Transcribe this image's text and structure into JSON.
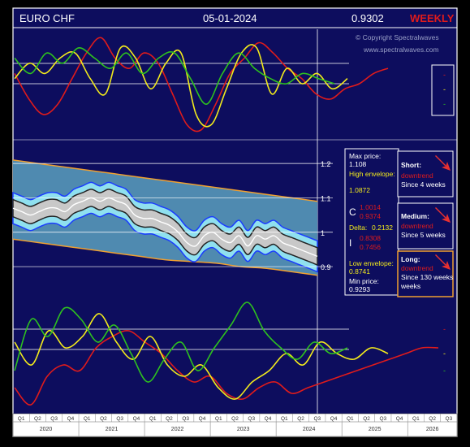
{
  "header": {
    "symbol": "EURO CHF",
    "date": "05-01-2024",
    "price": "0.9302",
    "period": "WEEKLY"
  },
  "copyright": {
    "line1": "© Copyright Spectralwaves",
    "line2": "www.spectralwaves.com"
  },
  "price_panel": {
    "max_price_label": "Max price:",
    "max_price": "1.108",
    "high_env_label": "High envelope:",
    "high_env": "1.0872",
    "c_label": "C",
    "c_val1": "1.0014",
    "c_val2": "0.9374",
    "delta_label": "Delta:",
    "delta": "0.2132",
    "i_label": "I",
    "i_val1": "0.8308",
    "i_val2": "0.7456",
    "low_env_label": "Low envelope:",
    "low_env": "0.8741",
    "min_price_label": "Min price:",
    "min_price": "0.9293"
  },
  "trends": [
    {
      "label": "Short:",
      "trend": "downtrend",
      "since": "Since 4 weeks"
    },
    {
      "label": "Medium:",
      "trend": "downtrend",
      "since": "Since 5 weeks"
    },
    {
      "label": "Long:",
      "trend": "downtrend",
      "since": "Since 130 weeks"
    }
  ],
  "legend_markers": [
    "-",
    "-",
    "-"
  ],
  "colors": {
    "background": "#0d0d5e",
    "frame": "#ffffff",
    "red": "#e01b1b",
    "yellow": "#f2ea1c",
    "green": "#2ec21e",
    "band_outer": "#1a3cff",
    "band_fill": "#8fe0ef",
    "envelope_fill": "#4f8ab0",
    "envelope_line": "#f0a030",
    "gray_band": "#c8c8c8",
    "arrow": "#e83030"
  },
  "chart_data": {
    "type": "line",
    "x_quarters": [
      "Q1",
      "Q2",
      "Q3",
      "Q4",
      "Q1",
      "Q2",
      "Q3",
      "Q4",
      "Q1",
      "Q2",
      "Q3",
      "Q4",
      "Q1",
      "Q2",
      "Q3",
      "Q4",
      "Q1",
      "Q2",
      "Q3",
      "Q4",
      "Q1",
      "Q2",
      "Q3",
      "Q4",
      "Q1",
      "Q2",
      "Q3"
    ],
    "x_years": [
      "2020",
      "2021",
      "2022",
      "2023",
      "2024",
      "2025",
      "2026"
    ],
    "price_axis": {
      "ticks": [
        "1.2",
        "1.1",
        "1",
        "0.9"
      ],
      "tick_values": [
        1.2,
        1.1,
        1.0,
        0.9
      ],
      "ylim": [
        0.86,
        1.25
      ]
    },
    "price_series": {
      "name": "EURCHF",
      "values": [
        1.07,
        1.06,
        1.05,
        1.06,
        1.07,
        1.07,
        1.06,
        1.08,
        1.09,
        1.1,
        1.09,
        1.1,
        1.09,
        1.08,
        1.05,
        1.04,
        1.04,
        1.03,
        1.02,
        1.0,
        0.97,
        0.96,
        0.99,
        1.0,
        0.98,
        0.97,
        0.99,
        0.96,
        0.99,
        0.98,
        0.99,
        0.97,
        0.96,
        0.95,
        0.94,
        0.93
      ]
    },
    "envelope_high": [
      1.21,
      1.2,
      1.19,
      1.18,
      1.17,
      1.16,
      1.15,
      1.14,
      1.13,
      1.12,
      1.11,
      1.1,
      1.09
    ],
    "envelope_low": [
      0.98,
      0.97,
      0.96,
      0.95,
      0.94,
      0.93,
      0.92,
      0.915,
      0.91,
      0.9,
      0.895,
      0.885,
      0.875
    ],
    "top_oscillators": {
      "red": [
        0.2,
        -0.3,
        -0.6,
        -0.4,
        0.1,
        0.6,
        0.9,
        0.5,
        0.3,
        0.6,
        0.4,
        -0.2,
        -0.8,
        -0.9,
        -0.4,
        0.2,
        0.5,
        0.8,
        0.6,
        0.3,
        0.1,
        -0.2,
        -0.3,
        -0.1,
        0.0,
        0.2,
        0.3
      ],
      "yellow": [
        0.1,
        0.4,
        0.2,
        0.5,
        0.6,
        0.1,
        -0.2,
        0.7,
        0.5,
        -0.1,
        0.4,
        0.6,
        -0.6,
        -0.8,
        -0.1,
        0.6,
        0.7,
        -0.2,
        0.3,
        0.0,
        0.2,
        -0.1,
        0.1
      ],
      "green": [
        0.5,
        0.2,
        0.6,
        0.4,
        0.7,
        0.5,
        0.3,
        0.6,
        0.2,
        0.5,
        0.6,
        0.1,
        -0.4,
        0.2,
        0.6,
        0.3,
        0.1,
        0.0,
        0.2,
        0.1,
        0.0
      ]
    },
    "bottom_oscillators": {
      "red": [
        -0.6,
        -0.9,
        -0.4,
        -0.2,
        -0.3,
        0.1,
        0.3,
        0.4,
        0.2,
        0.0,
        -0.3,
        -0.5,
        -0.4,
        -0.7,
        -0.8,
        -0.6,
        -0.5,
        -0.7,
        -0.6,
        -0.5,
        -0.4,
        -0.3,
        -0.2,
        -0.1,
        0.0,
        0.1,
        0.1
      ],
      "yellow": [
        0.2,
        -0.2,
        0.4,
        0.1,
        0.3,
        0.7,
        0.2,
        -0.1,
        0.3,
        -0.2,
        -0.4,
        -0.2,
        -0.6,
        -0.8,
        -0.5,
        -0.3,
        0.0,
        -0.2,
        0.2,
        0.0,
        -0.1,
        0.1,
        0.0
      ],
      "green": [
        -0.3,
        0.6,
        0.3,
        0.8,
        0.6,
        0.2,
        0.5,
        0.0,
        -0.5,
        -0.1,
        0.2,
        -0.3,
        0.1,
        0.5,
        0.9,
        0.4,
        0.1,
        -0.1,
        0.2,
        0.0,
        0.1
      ]
    }
  }
}
